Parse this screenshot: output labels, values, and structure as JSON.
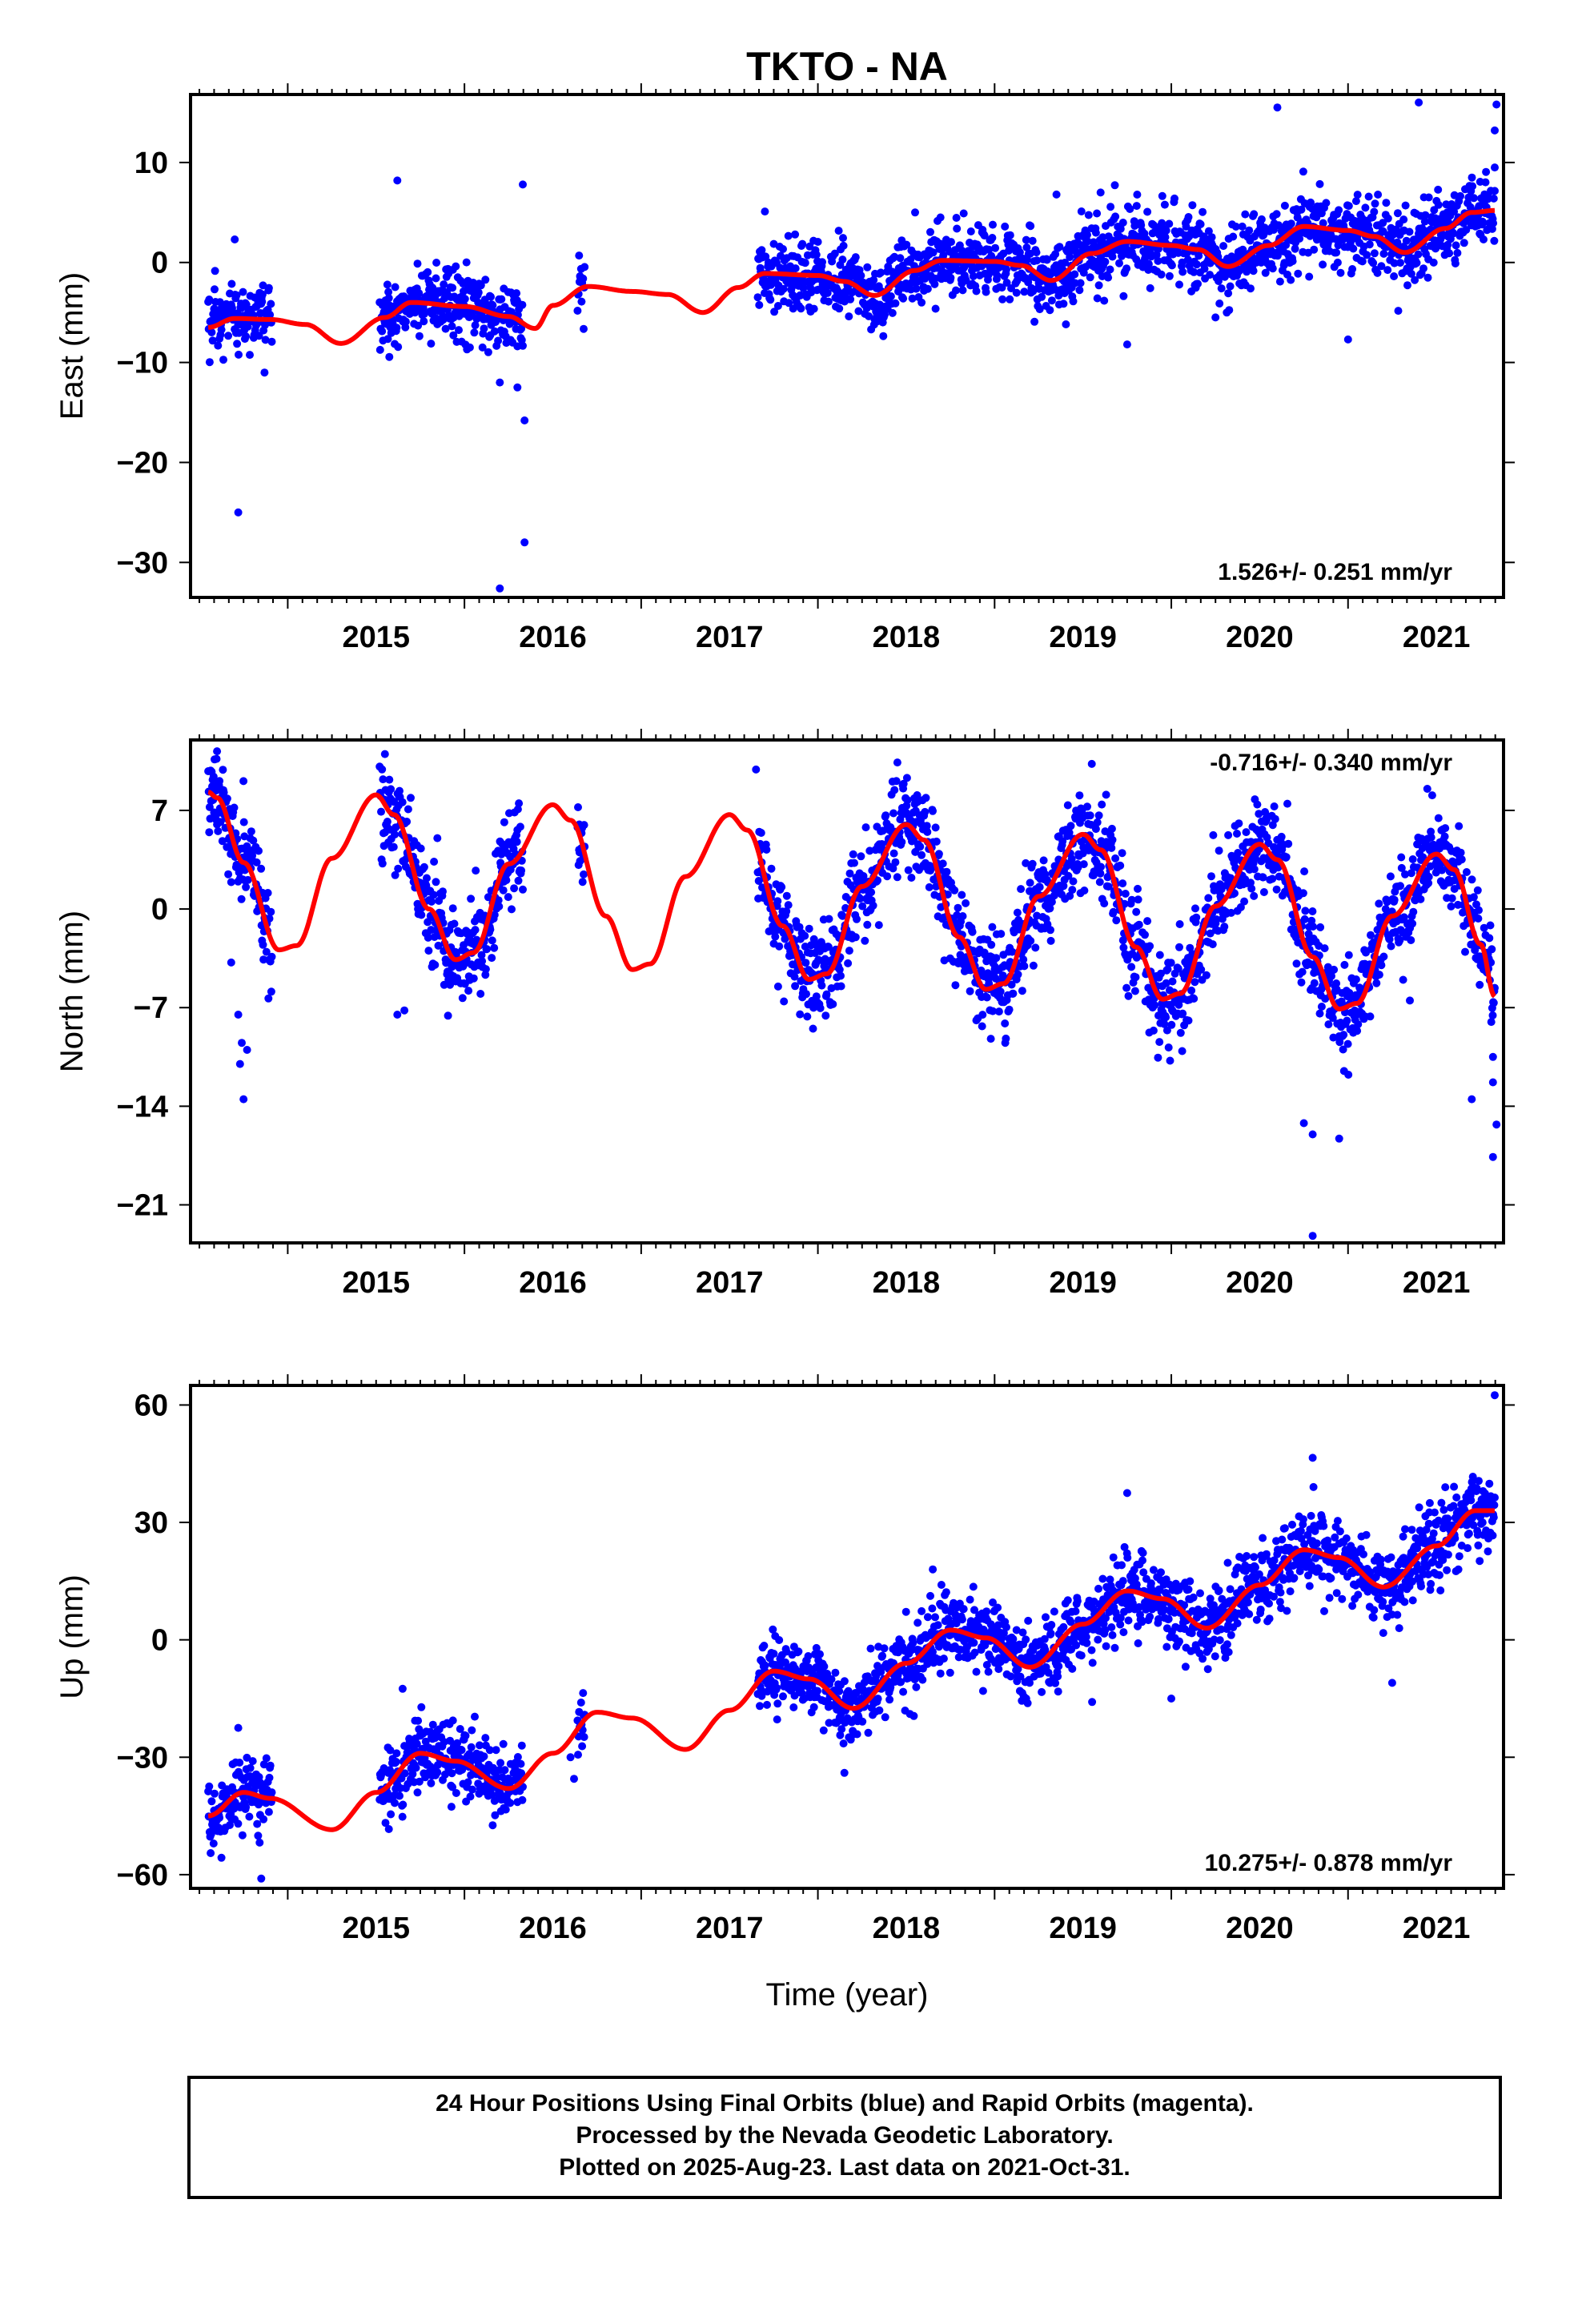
{
  "title": "TKTO - NA",
  "colors": {
    "points": "#0000ff",
    "model": "#ff0000",
    "frame": "#000000"
  },
  "chart_data": [
    {
      "type": "scatter",
      "ylabel": "East (mm)",
      "xlabel": "",
      "rate_text": "1.526+/- 0.251 mm/yr",
      "rate_position": "bottom-right",
      "xlim": [
        2014.45,
        2021.88
      ],
      "ylim": [
        -33.5,
        16.8
      ],
      "x_ticks": [
        2015,
        2016,
        2017,
        2018,
        2019,
        2020,
        2021
      ],
      "y_ticks": [
        10,
        0,
        -10,
        -20,
        -30
      ],
      "y_tick_labels": [
        "10",
        "0",
        "−10",
        "−20",
        "−30"
      ],
      "segments": [
        [
          2014.55,
          2014.91
        ],
        [
          2015.52,
          2016.33
        ],
        [
          2016.64,
          2016.68
        ],
        [
          2017.66,
          2021.83
        ]
      ],
      "model": {
        "offset": -5.9,
        "ref_year": 2018,
        "rate": 1.526,
        "ann_sin": 0.55,
        "ann_cos": 1.3,
        "semi_sin": 0.15,
        "semi_cos": 0.4
      },
      "model_knots": [
        [
          2014.55,
          -6.5
        ],
        [
          2014.7,
          -5.6
        ],
        [
          2014.9,
          -5.7
        ],
        [
          2015.1,
          -6.2
        ],
        [
          2015.3,
          -8.1
        ],
        [
          2015.55,
          -5.5
        ],
        [
          2015.7,
          -4.0
        ],
        [
          2016.0,
          -4.4
        ],
        [
          2016.25,
          -5.4
        ],
        [
          2016.4,
          -6.6
        ],
        [
          2016.5,
          -4.3
        ],
        [
          2016.7,
          -2.4
        ],
        [
          2016.95,
          -2.9
        ],
        [
          2017.15,
          -3.2
        ],
        [
          2017.35,
          -5.0
        ],
        [
          2017.55,
          -2.5
        ],
        [
          2017.7,
          -1.1
        ],
        [
          2018.0,
          -1.3
        ],
        [
          2018.15,
          -1.9
        ],
        [
          2018.32,
          -3.3
        ],
        [
          2018.55,
          -0.8
        ],
        [
          2018.7,
          0.2
        ],
        [
          2019.0,
          0.1
        ],
        [
          2019.15,
          -0.3
        ],
        [
          2019.32,
          -1.8
        ],
        [
          2019.55,
          0.9
        ],
        [
          2019.75,
          2.1
        ],
        [
          2020.0,
          1.7
        ],
        [
          2020.15,
          1.3
        ],
        [
          2020.32,
          -0.4
        ],
        [
          2020.55,
          1.7
        ],
        [
          2020.75,
          3.6
        ],
        [
          2021.0,
          3.2
        ],
        [
          2021.15,
          2.6
        ],
        [
          2021.32,
          1.0
        ],
        [
          2021.55,
          3.4
        ],
        [
          2021.7,
          5.0
        ],
        [
          2021.83,
          5.2
        ]
      ],
      "noise_sigma": 1.8,
      "outliers": [
        [
          2014.72,
          -25.0
        ],
        [
          2014.7,
          2.3
        ],
        [
          2015.62,
          8.2
        ],
        [
          2016.33,
          7.8
        ],
        [
          2016.2,
          -32.6
        ],
        [
          2016.34,
          -28.0
        ],
        [
          2016.34,
          -15.8
        ],
        [
          2016.3,
          -12.5
        ],
        [
          2016.2,
          -12.0
        ],
        [
          2020.6,
          15.5
        ],
        [
          2021.4,
          16.0
        ],
        [
          2021.84,
          15.8
        ],
        [
          2021.83,
          13.2
        ],
        [
          2019.75,
          -8.2
        ],
        [
          2021.0,
          -7.7
        ],
        [
          2019.35,
          6.8
        ],
        [
          2019.6,
          7.0
        ],
        [
          2021.83,
          9.5
        ],
        [
          2017.7,
          5.1
        ],
        [
          2018.55,
          5.0
        ],
        [
          2020.25,
          -5.5
        ]
      ]
    },
    {
      "type": "scatter",
      "ylabel": "North (mm)",
      "xlabel": "",
      "rate_text": "-0.716+/- 0.340 mm/yr",
      "rate_position": "top-right",
      "xlim": [
        2014.45,
        2021.88
      ],
      "ylim": [
        -23.7,
        12.0
      ],
      "x_ticks": [
        2015,
        2016,
        2017,
        2018,
        2019,
        2020,
        2021
      ],
      "y_ticks": [
        7,
        0,
        -7,
        -14,
        -21
      ],
      "y_tick_labels": [
        "7",
        "0",
        "−7",
        "−14",
        "−21"
      ],
      "segments": [
        [
          2014.55,
          2014.91
        ],
        [
          2015.52,
          2016.33
        ],
        [
          2016.64,
          2016.68
        ],
        [
          2017.66,
          2021.83
        ]
      ],
      "model": {
        "offset": -0.6,
        "ref_year": 2018,
        "rate": -0.716,
        "ann_sin": 5.6,
        "ann_cos": -0.5,
        "semi_sin": 0.0,
        "semi_cos": 0.0
      },
      "model_knots": [
        [
          2014.55,
          8.3
        ],
        [
          2014.6,
          7.9
        ],
        [
          2014.75,
          3.3
        ],
        [
          2014.95,
          -2.9
        ],
        [
          2015.05,
          -2.6
        ],
        [
          2015.25,
          3.6
        ],
        [
          2015.5,
          8.1
        ],
        [
          2015.6,
          6.7
        ],
        [
          2015.8,
          0.0
        ],
        [
          2015.95,
          -3.6
        ],
        [
          2016.05,
          -3.1
        ],
        [
          2016.25,
          3.2
        ],
        [
          2016.5,
          7.4
        ],
        [
          2016.6,
          6.3
        ],
        [
          2016.8,
          -0.5
        ],
        [
          2016.95,
          -4.3
        ],
        [
          2017.05,
          -3.9
        ],
        [
          2017.25,
          2.3
        ],
        [
          2017.5,
          6.7
        ],
        [
          2017.6,
          5.6
        ],
        [
          2017.8,
          -1.2
        ],
        [
          2017.95,
          -5.0
        ],
        [
          2018.05,
          -4.6
        ],
        [
          2018.25,
          1.6
        ],
        [
          2018.5,
          6.0
        ],
        [
          2018.6,
          4.9
        ],
        [
          2018.8,
          -2.0
        ],
        [
          2018.95,
          -5.7
        ],
        [
          2019.05,
          -5.3
        ],
        [
          2019.25,
          0.9
        ],
        [
          2019.5,
          5.3
        ],
        [
          2019.6,
          4.2
        ],
        [
          2019.8,
          -2.7
        ],
        [
          2019.95,
          -6.4
        ],
        [
          2020.05,
          -6.0
        ],
        [
          2020.25,
          0.2
        ],
        [
          2020.5,
          4.6
        ],
        [
          2020.6,
          3.5
        ],
        [
          2020.8,
          -3.4
        ],
        [
          2020.95,
          -7.1
        ],
        [
          2021.05,
          -6.7
        ],
        [
          2021.25,
          -0.5
        ],
        [
          2021.5,
          3.9
        ],
        [
          2021.6,
          2.8
        ],
        [
          2021.75,
          -2.5
        ],
        [
          2021.83,
          -6.2
        ]
      ],
      "noise_sigma": 1.7,
      "outliers": [
        [
          2014.75,
          -13.5
        ],
        [
          2014.73,
          -11.0
        ],
        [
          2014.74,
          -9.5
        ],
        [
          2014.72,
          -7.5
        ],
        [
          2014.77,
          -10.0
        ],
        [
          2014.68,
          -3.8
        ],
        [
          2014.6,
          11.2
        ],
        [
          2015.55,
          11.0
        ],
        [
          2015.62,
          -7.5
        ],
        [
          2015.66,
          -7.2
        ],
        [
          2016.65,
          6.0
        ],
        [
          2017.65,
          9.9
        ],
        [
          2018.45,
          10.4
        ],
        [
          2019.55,
          10.3
        ],
        [
          2019.06,
          -9.5
        ],
        [
          2020.8,
          -23.2
        ],
        [
          2020.8,
          -16.0
        ],
        [
          2020.75,
          -15.2
        ],
        [
          2020.95,
          -16.3
        ],
        [
          2021.82,
          -17.6
        ],
        [
          2021.84,
          -15.3
        ],
        [
          2021.82,
          -12.3
        ],
        [
          2021.82,
          -10.5
        ],
        [
          2021.7,
          -13.5
        ],
        [
          2021.35,
          -6.5
        ]
      ]
    },
    {
      "type": "scatter",
      "ylabel": "Up (mm)",
      "xlabel": "Time (year)",
      "rate_text": "10.275+/- 0.878 mm/yr",
      "rate_position": "bottom-right",
      "xlim": [
        2014.45,
        2021.88
      ],
      "ylim": [
        -63.5,
        65.0
      ],
      "x_ticks": [
        2015,
        2016,
        2017,
        2018,
        2019,
        2020,
        2021
      ],
      "y_ticks": [
        60,
        30,
        0,
        -30,
        -60
      ],
      "y_tick_labels": [
        "60",
        "30",
        "0",
        "−30",
        "−60"
      ],
      "segments": [
        [
          2014.55,
          2014.91
        ],
        [
          2015.52,
          2016.33
        ],
        [
          2016.64,
          2016.68
        ],
        [
          2017.66,
          2021.83
        ]
      ],
      "model": {
        "offset": -15.0,
        "ref_year": 2018,
        "rate": 10.275,
        "ann_sin": 3.5,
        "ann_cos": 9.0,
        "semi_sin": 0.0,
        "semi_cos": 0.0
      },
      "model_knots": [
        [
          2014.55,
          -45.0
        ],
        [
          2014.75,
          -39.0
        ],
        [
          2014.9,
          -40.5
        ],
        [
          2015.25,
          -48.5
        ],
        [
          2015.5,
          -39.0
        ],
        [
          2015.75,
          -29.0
        ],
        [
          2015.95,
          -31.0
        ],
        [
          2016.25,
          -38.0
        ],
        [
          2016.5,
          -29.0
        ],
        [
          2016.75,
          -18.5
        ],
        [
          2016.95,
          -20.0
        ],
        [
          2017.25,
          -28.0
        ],
        [
          2017.5,
          -18.0
        ],
        [
          2017.75,
          -8.0
        ],
        [
          2017.95,
          -10.0
        ],
        [
          2018.2,
          -17.5
        ],
        [
          2018.5,
          -6.0
        ],
        [
          2018.75,
          2.5
        ],
        [
          2018.95,
          0.5
        ],
        [
          2019.2,
          -7.0
        ],
        [
          2019.5,
          4.0
        ],
        [
          2019.75,
          12.5
        ],
        [
          2019.95,
          10.5
        ],
        [
          2020.2,
          3.0
        ],
        [
          2020.5,
          14.0
        ],
        [
          2020.75,
          23.0
        ],
        [
          2020.95,
          21.0
        ],
        [
          2021.2,
          13.5
        ],
        [
          2021.5,
          24.0
        ],
        [
          2021.72,
          33.0
        ],
        [
          2021.83,
          33.0
        ]
      ],
      "noise_sigma": 4.8,
      "outliers": [
        [
          2015.65,
          -12.5
        ],
        [
          2016.6,
          -30.0
        ],
        [
          2016.62,
          -35.5
        ],
        [
          2014.85,
          -61.0
        ],
        [
          2014.72,
          -22.5
        ],
        [
          2018.15,
          -34.0
        ],
        [
          2019.75,
          37.5
        ],
        [
          2020.8,
          46.5
        ],
        [
          2021.83,
          62.5
        ],
        [
          2018.65,
          18.0
        ],
        [
          2020.0,
          -15.0
        ],
        [
          2021.25,
          -11.0
        ]
      ]
    }
  ],
  "footer": {
    "lines": [
      "24 Hour Positions Using Final Orbits (blue) and Rapid Orbits (magenta).",
      "Processed by the Nevada Geodetic Laboratory.",
      "Plotted on 2025-Aug-23. Last data on 2021-Oct-31."
    ]
  }
}
